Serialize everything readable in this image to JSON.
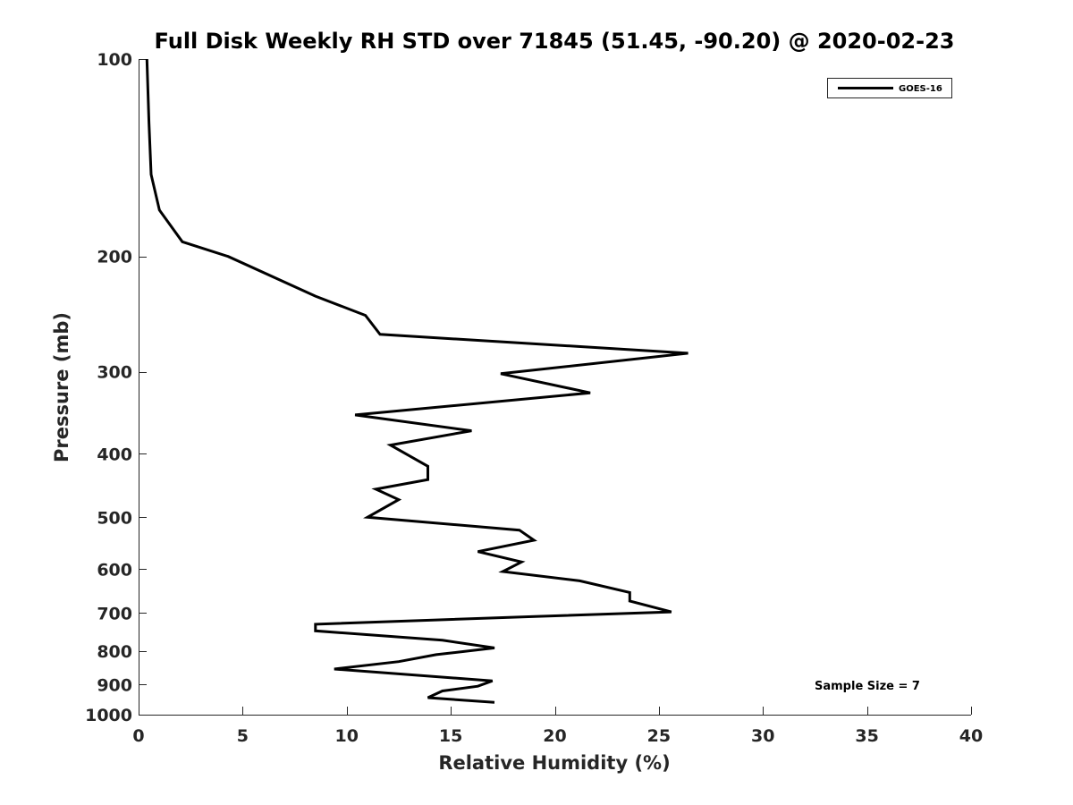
{
  "chart_data": {
    "type": "line",
    "title": "Full Disk Weekly RH STD over 71845 (51.45, -90.20) @ 2020-02-23",
    "xlabel": "Relative Humidity (%)",
    "ylabel": "Pressure (mb)",
    "xlim": [
      0,
      40
    ],
    "ylim": [
      100,
      1000
    ],
    "y_scale": "log",
    "y_reversed": true,
    "x_ticks": [
      0,
      5,
      10,
      15,
      20,
      25,
      30,
      35,
      40
    ],
    "y_ticks": [
      100,
      200,
      300,
      400,
      500,
      600,
      700,
      800,
      900,
      1000
    ],
    "grid": false,
    "legend_position": "top-right",
    "series": [
      {
        "name": "GOES-16",
        "color": "#000000",
        "x": [
          0.4,
          0.5,
          0.6,
          1.0,
          2.1,
          4.3,
          8.5,
          10.9,
          11.6,
          26.4,
          17.4,
          21.7,
          10.4,
          16.0,
          12.1,
          13.9,
          13.9,
          11.4,
          12.5,
          11.0,
          18.3,
          19.0,
          16.3,
          18.4,
          17.5,
          21.2,
          23.6,
          23.6,
          25.6,
          19.2,
          8.5,
          8.5,
          14.6,
          17.1,
          14.3,
          12.5,
          9.4,
          17.0,
          16.3,
          14.6,
          13.9,
          17.1
        ],
        "y": [
          100,
          125,
          150,
          170,
          190,
          200,
          230,
          246,
          263,
          281,
          302,
          323,
          349,
          369,
          388,
          418,
          438,
          453,
          470,
          500,
          523,
          542,
          564,
          585,
          605,
          625,
          651,
          671,
          697,
          708,
          728,
          745,
          770,
          791,
          810,
          830,
          852,
          888,
          905,
          920,
          942,
          958
        ]
      }
    ],
    "annotations": [
      "Sample Size = 7"
    ]
  }
}
